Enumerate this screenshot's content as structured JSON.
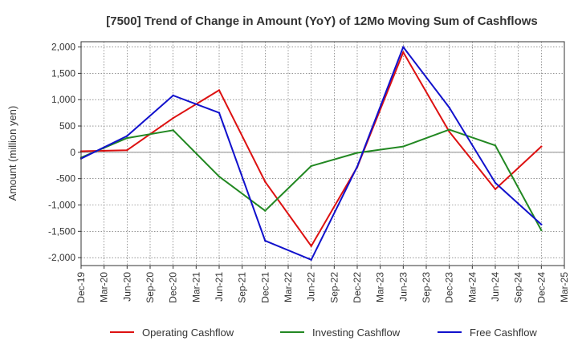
{
  "chart_data": {
    "type": "line",
    "title": "[7500]  Trend of Change in Amount (YoY) of 12Mo Moving Sum of Cashflows",
    "xlabel": "",
    "ylabel": "Amount (million yen)",
    "ylim": [
      -2150,
      2100
    ],
    "yticks": [
      2000,
      1500,
      1000,
      500,
      0,
      -500,
      -1000,
      -1500,
      -2000
    ],
    "ytick_labels": [
      "2,000",
      "1,500",
      "1,000",
      "500",
      "0",
      "-500",
      "-1,000",
      "-1,500",
      "-2,000"
    ],
    "categories": [
      "Dec-19",
      "Mar-20",
      "Jun-20",
      "Sep-20",
      "Dec-20",
      "Mar-21",
      "Jun-21",
      "Sep-21",
      "Dec-21",
      "Mar-22",
      "Jun-22",
      "Sep-22",
      "Dec-22",
      "Mar-23",
      "Jun-23",
      "Sep-23",
      "Dec-23",
      "Mar-24",
      "Jun-24",
      "Sep-24",
      "Dec-24",
      "Mar-25"
    ],
    "grid": true,
    "legend_position": "bottom",
    "series": [
      {
        "name": "Operating Cashflow",
        "color": "#dd1111",
        "points": [
          [
            0,
            20
          ],
          [
            1,
            30
          ],
          [
            2,
            40
          ],
          [
            4,
            650
          ],
          [
            6,
            1180
          ],
          [
            8,
            -560
          ],
          [
            10,
            -1780
          ],
          [
            12,
            -280
          ],
          [
            14,
            1900
          ],
          [
            16,
            390
          ],
          [
            18,
            -700
          ],
          [
            20,
            110
          ]
        ]
      },
      {
        "name": "Investing Cashflow",
        "color": "#228822",
        "points": [
          [
            0,
            -100
          ],
          [
            2,
            270
          ],
          [
            4,
            420
          ],
          [
            6,
            -460
          ],
          [
            8,
            -1110
          ],
          [
            10,
            -260
          ],
          [
            12,
            -10
          ],
          [
            14,
            110
          ],
          [
            16,
            430
          ],
          [
            18,
            130
          ],
          [
            20,
            -1480
          ]
        ]
      },
      {
        "name": "Free Cashflow",
        "color": "#1111cc",
        "points": [
          [
            0,
            -120
          ],
          [
            2,
            310
          ],
          [
            4,
            1080
          ],
          [
            6,
            750
          ],
          [
            8,
            -1680
          ],
          [
            10,
            -2040
          ],
          [
            12,
            -270
          ],
          [
            14,
            2000
          ],
          [
            16,
            850
          ],
          [
            18,
            -580
          ],
          [
            20,
            -1370
          ]
        ]
      }
    ]
  }
}
